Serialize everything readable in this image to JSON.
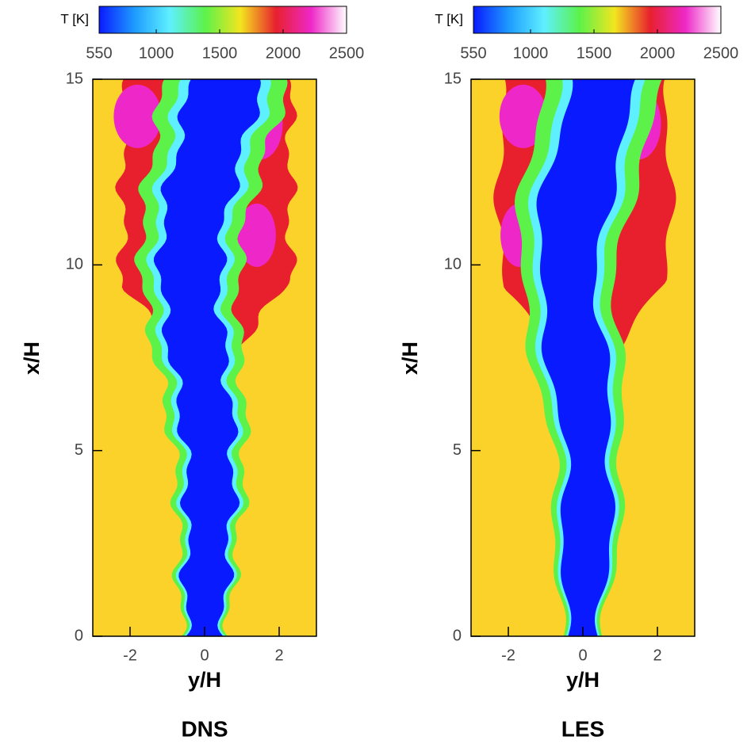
{
  "chart_data": [
    {
      "type": "contour",
      "title": "DNS",
      "xlabel": "y/H",
      "ylabel": "x/H",
      "xlim": [
        -3,
        3
      ],
      "ylim": [
        0,
        15
      ],
      "xticks": [
        -2,
        0,
        2
      ],
      "yticks": [
        0,
        5,
        10,
        15
      ],
      "colorbar": {
        "label": "T [K]",
        "lim": [
          550,
          2500
        ],
        "ticks": [
          550,
          1000,
          1500,
          2000,
          2500
        ],
        "colors": [
          "#0a1aff",
          "#1e9bff",
          "#5ef0ff",
          "#5cf24a",
          "#f3e51f",
          "#e8202e",
          "#ee28c8",
          "#ffffff"
        ]
      }
    },
    {
      "type": "contour",
      "title": "LES",
      "xlabel": "y/H",
      "ylabel": "x/H",
      "xlim": [
        -3,
        3
      ],
      "ylim": [
        0,
        15
      ],
      "xticks": [
        -2,
        0,
        2
      ],
      "yticks": [
        0,
        5,
        10,
        15
      ],
      "colorbar": {
        "label": "T [K]",
        "lim": [
          550,
          2500
        ],
        "ticks": [
          550,
          1000,
          1500,
          2000,
          2500
        ],
        "colors": [
          "#0a1aff",
          "#1e9bff",
          "#5ef0ff",
          "#5cf24a",
          "#f3e51f",
          "#e8202e",
          "#ee28c8",
          "#ffffff"
        ]
      }
    }
  ]
}
